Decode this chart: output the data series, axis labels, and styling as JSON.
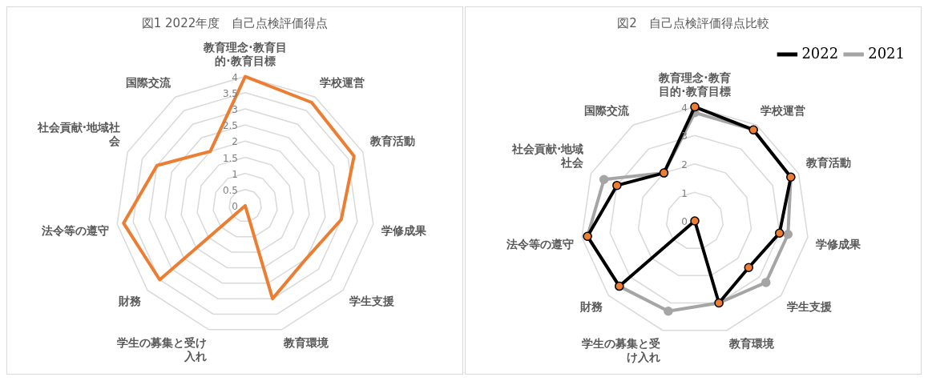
{
  "chart_data": [
    {
      "type": "radar",
      "title": "図1 2022年度　自己点検評価得点",
      "categories": [
        "教育理念·教育目的·教育目標",
        "学校運営",
        "教育活動",
        "学修成果",
        "学生支援",
        "教育環境",
        "学生の募集と受け入れ",
        "財務",
        "法令等の遵守",
        "社会貢献·地域社会",
        "国際交流"
      ],
      "series": [
        {
          "color": "#ed7d31",
          "values": [
            4,
            3.8,
            3.7,
            3.0,
            2.5,
            3.0,
            0,
            3.5,
            3.8,
            3.0,
            2.0
          ]
        }
      ],
      "ylim": [
        0,
        4
      ],
      "yticks": [
        0,
        0.5,
        1,
        1.5,
        2,
        2.5,
        3,
        3.5,
        4
      ],
      "grid": true
    },
    {
      "type": "radar",
      "title": "図2　自己点検評価得点比較",
      "categories": [
        "教育理念·教育目的·教育目標",
        "学校運営",
        "教育活動",
        "学修成果",
        "学生支援",
        "教育環境",
        "学生の募集と受け入れ",
        "財務",
        "法令等の遵守",
        "社会貢献·地域社会",
        "国際交流"
      ],
      "series": [
        {
          "name": "2022",
          "color": "#000000",
          "values": [
            4,
            3.8,
            3.7,
            3.0,
            2.5,
            3.0,
            0,
            3.5,
            3.8,
            3.0,
            2.0
          ]
        },
        {
          "name": "2021",
          "color": "#a5a5a5",
          "values": [
            3.8,
            3.8,
            3.7,
            3.3,
            3.3,
            3.0,
            3.3,
            3.5,
            3.8,
            3.5,
            2.0
          ]
        }
      ],
      "ylim": [
        0,
        4
      ],
      "yticks": [
        0,
        1,
        2,
        3,
        4
      ],
      "grid": true,
      "legend": "top right",
      "marker": "circle"
    }
  ]
}
